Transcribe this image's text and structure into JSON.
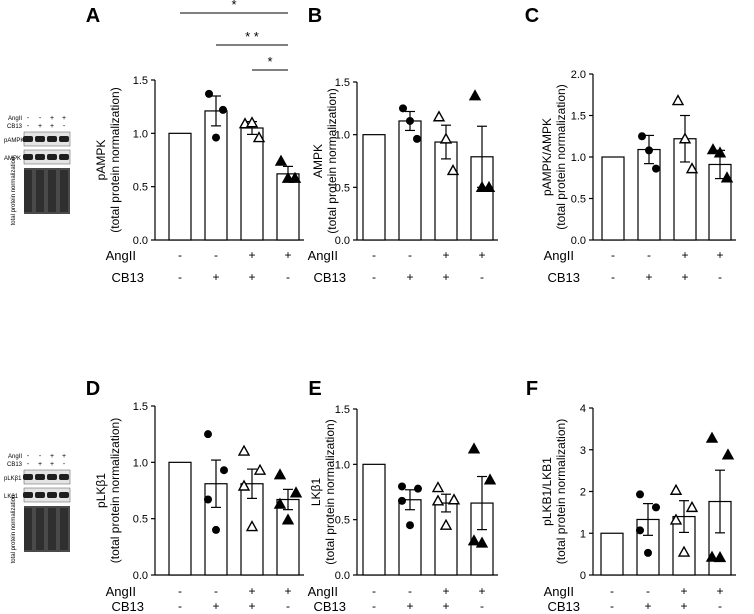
{
  "chart_data": [
    {
      "panel": "A",
      "type": "bar",
      "ylabel_line1": "pAMPK",
      "ylabel_line2": "(total protein normalization)",
      "ylim": [
        0,
        1.5
      ],
      "yticks": [
        "0.0",
        "0.5",
        "1.0",
        "1.5"
      ],
      "conditions": [
        {
          "angii": "-",
          "cb13": "-",
          "mean": 1.0,
          "sem": 0,
          "marker": "none",
          "points": []
        },
        {
          "angii": "-",
          "cb13": "+",
          "mean": 1.21,
          "sem": 0.14,
          "marker": "circle",
          "points": [
            1.37,
            0.96,
            1.22
          ]
        },
        {
          "angii": "+",
          "cb13": "+",
          "mean": 1.05,
          "sem": 0.06,
          "marker": "triangle-open",
          "points": [
            1.09,
            1.1,
            0.96
          ]
        },
        {
          "angii": "+",
          "cb13": "-",
          "mean": 0.62,
          "sem": 0.07,
          "marker": "triangle-filled",
          "points": [
            0.74,
            0.58,
            0.58
          ]
        }
      ],
      "significance": [
        {
          "from": 0,
          "to": 3,
          "label": "*"
        },
        {
          "from": 1,
          "to": 3,
          "label": "* *"
        },
        {
          "from": 2,
          "to": 3,
          "label": "*"
        }
      ]
    },
    {
      "panel": "B",
      "type": "bar",
      "ylabel_line1": "AMPK",
      "ylabel_line2": "(total protein normalization)",
      "ylim": [
        0,
        1.5
      ],
      "yticks": [
        "0.0",
        "0.5",
        "1.0",
        "1.5"
      ],
      "conditions": [
        {
          "angii": "-",
          "cb13": "-",
          "mean": 1.0,
          "sem": 0,
          "marker": "none",
          "points": []
        },
        {
          "angii": "-",
          "cb13": "+",
          "mean": 1.13,
          "sem": 0.09,
          "marker": "circle",
          "points": [
            1.25,
            1.13,
            0.96
          ]
        },
        {
          "angii": "+",
          "cb13": "+",
          "mean": 0.93,
          "sem": 0.16,
          "marker": "triangle-open",
          "points": [
            1.17,
            0.96,
            0.66
          ]
        },
        {
          "angii": "+",
          "cb13": "-",
          "mean": 0.79,
          "sem": 0.29,
          "marker": "triangle-filled",
          "points": [
            1.37,
            0.5,
            0.5
          ]
        }
      ]
    },
    {
      "panel": "C",
      "type": "bar",
      "ylabel_line1": "pAMPK/AMPK",
      "ylabel_line2": "(total protein normalization)",
      "ylim": [
        0,
        2.0
      ],
      "yticks": [
        "0.0",
        "0.5",
        "1.0",
        "1.5",
        "2.0"
      ],
      "conditions": [
        {
          "angii": "-",
          "cb13": "-",
          "mean": 1.0,
          "sem": 0,
          "marker": "none",
          "points": []
        },
        {
          "angii": "-",
          "cb13": "+",
          "mean": 1.09,
          "sem": 0.17,
          "marker": "circle",
          "points": [
            1.25,
            1.08,
            0.86
          ]
        },
        {
          "angii": "+",
          "cb13": "+",
          "mean": 1.22,
          "sem": 0.28,
          "marker": "triangle-open",
          "points": [
            1.68,
            1.22,
            0.86
          ]
        },
        {
          "angii": "+",
          "cb13": "-",
          "mean": 0.91,
          "sem": 0.17,
          "marker": "triangle-filled",
          "points": [
            1.09,
            1.05,
            0.75
          ]
        }
      ]
    },
    {
      "panel": "D",
      "type": "bar",
      "ylabel_line1": "pLKβ1",
      "ylabel_line2": "(total protein normalization)",
      "ylim": [
        0,
        1.5
      ],
      "yticks": [
        "0.0",
        "0.5",
        "1.0",
        "1.5"
      ],
      "conditions": [
        {
          "angii": "-",
          "cb13": "-",
          "mean": 1.0,
          "sem": 0,
          "marker": "none",
          "points": []
        },
        {
          "angii": "-",
          "cb13": "+",
          "mean": 0.81,
          "sem": 0.21,
          "marker": "circle",
          "points": [
            1.25,
            0.93,
            0.67,
            0.4
          ]
        },
        {
          "angii": "+",
          "cb13": "+",
          "mean": 0.81,
          "sem": 0.13,
          "marker": "triangle-open",
          "points": [
            1.1,
            0.93,
            0.79,
            0.43
          ]
        },
        {
          "angii": "+",
          "cb13": "-",
          "mean": 0.67,
          "sem": 0.09,
          "marker": "triangle-filled",
          "points": [
            0.89,
            0.73,
            0.63,
            0.49
          ]
        }
      ]
    },
    {
      "panel": "E",
      "type": "bar",
      "ylabel_line1": "LKβ1",
      "ylabel_line2": "(total protein normalization)",
      "ylim": [
        0,
        1.5
      ],
      "yticks": [
        "0.0",
        "0.5",
        "1.0",
        "1.5"
      ],
      "conditions": [
        {
          "angii": "-",
          "cb13": "-",
          "mean": 1.0,
          "sem": 0,
          "marker": "none",
          "points": []
        },
        {
          "angii": "-",
          "cb13": "+",
          "mean": 0.68,
          "sem": 0.09,
          "marker": "circle",
          "points": [
            0.8,
            0.78,
            0.67,
            0.45
          ]
        },
        {
          "angii": "+",
          "cb13": "+",
          "mean": 0.65,
          "sem": 0.08,
          "marker": "triangle-open",
          "points": [
            0.79,
            0.68,
            0.67,
            0.45
          ]
        },
        {
          "angii": "+",
          "cb13": "-",
          "mean": 0.65,
          "sem": 0.24,
          "marker": "triangle-filled",
          "points": [
            1.14,
            0.86,
            0.31,
            0.29
          ]
        }
      ]
    },
    {
      "panel": "F",
      "type": "bar",
      "ylabel_line1": "pLKB1/LKB1",
      "ylabel_line2": "(total protein normalization)",
      "ylim": [
        0,
        4
      ],
      "yticks": [
        "0",
        "1",
        "2",
        "3",
        "4"
      ],
      "conditions": [
        {
          "angii": "-",
          "cb13": "-",
          "mean": 1.0,
          "sem": 0,
          "marker": "none",
          "points": []
        },
        {
          "angii": "-",
          "cb13": "+",
          "mean": 1.33,
          "sem": 0.38,
          "marker": "circle",
          "points": [
            1.93,
            1.62,
            1.07,
            0.53
          ]
        },
        {
          "angii": "+",
          "cb13": "+",
          "mean": 1.4,
          "sem": 0.38,
          "marker": "triangle-open",
          "points": [
            2.03,
            1.62,
            1.32,
            0.55
          ]
        },
        {
          "angii": "+",
          "cb13": "-",
          "mean": 1.76,
          "sem": 0.75,
          "marker": "triangle-filled",
          "points": [
            3.28,
            2.88,
            0.43,
            0.42
          ]
        }
      ]
    }
  ],
  "row_labels": {
    "angii": "AngII",
    "cb13": "CB13"
  },
  "blots": [
    {
      "id": "top",
      "condition_labels": [
        "AngII",
        "CB13"
      ],
      "angii_signs": [
        "-",
        "-",
        "+",
        "+"
      ],
      "cb13_signs": [
        "-",
        "+",
        "+",
        "-"
      ],
      "bands": [
        "pAMPK",
        "AMPK"
      ],
      "total_protein_label": "total protein normalization"
    },
    {
      "id": "bottom",
      "condition_labels": [
        "AngII",
        "CB13"
      ],
      "angii_signs": [
        "-",
        "-",
        "+",
        "+"
      ],
      "cb13_signs": [
        "-",
        "+",
        "+",
        "-"
      ],
      "bands": [
        "pLKβ1",
        "LKβ1"
      ],
      "total_protein_label": "total protein normalization"
    }
  ],
  "colors": {
    "axis": "#000000",
    "bar_fill": "#ffffff",
    "blot_dark": "#4a4a4a",
    "blot_band": "#1e1e1e"
  }
}
